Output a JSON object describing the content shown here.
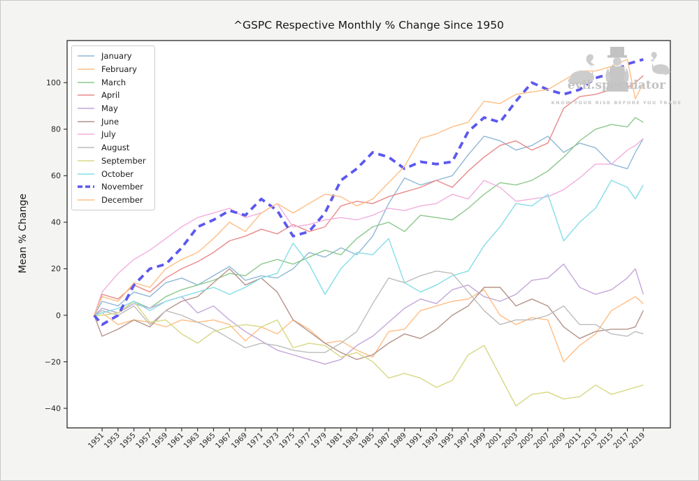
{
  "figure": {
    "background": "#f4f4f3",
    "axes_background": "#ffffff",
    "spine_color": "#2b2b2b",
    "tick_label_color": "#262626"
  },
  "watermark": {
    "brand": "evil.speculator",
    "tagline": "KNOW YOUR RISK BEFORE YOU TRADE",
    "color": "#c5c5c5"
  },
  "chart_data": {
    "type": "line",
    "title": "^GSPC Respective Monthly % Change Since 1950",
    "xlabel": "",
    "ylabel": "Mean % Change",
    "grid": false,
    "legend_position": "upper-left",
    "xlim": [
      1946.6,
      2022.4
    ],
    "ylim": [
      -48.4,
      118.1
    ],
    "y_ticks": [
      100,
      80,
      60,
      40,
      20,
      0,
      -20,
      -40
    ],
    "x_tick_labels": [
      1951,
      1953,
      1955,
      1957,
      1959,
      1961,
      1963,
      1965,
      1967,
      1969,
      1971,
      1973,
      1975,
      1977,
      1979,
      1981,
      1983,
      1985,
      1987,
      1989,
      1991,
      1993,
      1995,
      1997,
      1999,
      2001,
      2003,
      2005,
      2007,
      2009,
      2011,
      2013,
      2015,
      2017,
      2019
    ],
    "x": [
      1950,
      1951,
      1953,
      1955,
      1957,
      1959,
      1961,
      1963,
      1965,
      1967,
      1969,
      1971,
      1973,
      1975,
      1977,
      1979,
      1981,
      1983,
      1985,
      1987,
      1989,
      1991,
      1993,
      1995,
      1997,
      1999,
      2001,
      2003,
      2005,
      2007,
      2009,
      2011,
      2013,
      2015,
      2017,
      2018,
      2019
    ],
    "series": [
      {
        "name": "January",
        "color": "#8fb7d6",
        "dashed": false,
        "width": 1.4,
        "values": [
          0,
          6,
          4,
          10,
          8,
          14,
          16,
          13,
          17,
          21,
          15,
          17,
          16,
          20,
          27,
          25,
          29,
          26,
          34,
          48,
          59,
          56,
          58,
          60,
          69,
          77,
          75,
          71,
          73,
          77,
          70,
          74,
          72,
          65,
          63,
          70,
          76
        ]
      },
      {
        "name": "February",
        "color": "#ffbd83",
        "dashed": false,
        "width": 1.4,
        "values": [
          0,
          1,
          -4,
          -2,
          -3,
          -5,
          -2,
          -3,
          -2,
          -4,
          -11,
          -5,
          -8,
          -2,
          -6,
          -12,
          -11,
          -15,
          -18,
          -7,
          -6,
          2,
          4,
          6,
          7,
          11,
          0,
          -4,
          -1,
          -2,
          -20,
          -13,
          -8,
          2,
          6,
          8,
          5
        ]
      },
      {
        "name": "March",
        "color": "#8cc88c",
        "dashed": false,
        "width": 1.4,
        "values": [
          0,
          3,
          1,
          6,
          3,
          8,
          11,
          13,
          15,
          18,
          17,
          22,
          24,
          22,
          25,
          28,
          26,
          33,
          38,
          40,
          36,
          43,
          42,
          41,
          46,
          52,
          57,
          56,
          58,
          62,
          68,
          75,
          80,
          82,
          81,
          85,
          83
        ]
      },
      {
        "name": "April",
        "color": "#e98989",
        "dashed": false,
        "width": 1.4,
        "values": [
          0,
          9,
          7,
          13,
          10,
          16,
          20,
          23,
          27,
          32,
          34,
          37,
          35,
          39,
          36,
          38,
          47,
          49,
          48,
          51,
          53,
          55,
          58,
          55,
          62,
          68,
          73,
          75,
          71,
          74,
          89,
          94,
          95,
          97,
          98,
          100,
          103
        ]
      },
      {
        "name": "May",
        "color": "#c3a6d9",
        "dashed": false,
        "width": 1.4,
        "values": [
          0,
          3,
          1,
          5,
          3,
          6,
          8,
          1,
          4,
          -2,
          -7,
          -11,
          -15,
          -17,
          -19,
          -21,
          -19,
          -13,
          -9,
          -3,
          3,
          7,
          5,
          11,
          13,
          8,
          6,
          9,
          15,
          16,
          22,
          12,
          9,
          11,
          16,
          20,
          9
        ]
      },
      {
        "name": "June",
        "color": "#b5938b",
        "dashed": false,
        "width": 1.4,
        "values": [
          0,
          -9,
          -6,
          -2,
          -5,
          2,
          6,
          8,
          14,
          20,
          13,
          16,
          10,
          -2,
          -7,
          -12,
          -16,
          -19,
          -17,
          -12,
          -8,
          -10,
          -6,
          0,
          4,
          12,
          12,
          4,
          7,
          4,
          -5,
          -10,
          -7,
          -6,
          -6,
          -5,
          2
        ]
      },
      {
        "name": "July",
        "color": "#f2aede",
        "dashed": false,
        "width": 1.4,
        "values": [
          0,
          10,
          18,
          24,
          28,
          33,
          38,
          42,
          44,
          46,
          42,
          44,
          48,
          38,
          39,
          41,
          42,
          41,
          43,
          46,
          45,
          47,
          48,
          52,
          50,
          58,
          55,
          49,
          50,
          51,
          54,
          59,
          65,
          65,
          71,
          73,
          76
        ]
      },
      {
        "name": "August",
        "color": "#bcbcbc",
        "dashed": false,
        "width": 1.4,
        "values": [
          0,
          2,
          0,
          4,
          -4,
          2,
          0,
          -3,
          -6,
          -10,
          -14,
          -12,
          -13,
          -15,
          -16,
          -16,
          -12,
          -7,
          5,
          16,
          14,
          17,
          19,
          18,
          10,
          2,
          -4,
          -2,
          -2,
          0,
          4,
          -4,
          -4,
          -8,
          -9,
          -7,
          -8
        ]
      },
      {
        "name": "September",
        "color": "#d7d883",
        "dashed": false,
        "width": 1.4,
        "values": [
          0,
          0,
          1,
          6,
          -3,
          -2,
          -8,
          -12,
          -7,
          -5,
          -4,
          -5,
          -2,
          -14,
          -12,
          -13,
          -18,
          -16,
          -20,
          -27,
          -25,
          -27,
          -31,
          -28,
          -17,
          -13,
          -26,
          -39,
          -34,
          -33,
          -36,
          -35,
          -30,
          -34,
          -32,
          -31,
          -30
        ]
      },
      {
        "name": "October",
        "color": "#84dde8",
        "dashed": false,
        "width": 1.4,
        "values": [
          0,
          1,
          3,
          6,
          2,
          6,
          8,
          10,
          12,
          9,
          12,
          16,
          18,
          31,
          22,
          9,
          20,
          27,
          26,
          33,
          14,
          10,
          13,
          17,
          19,
          30,
          38,
          48,
          47,
          52,
          32,
          40,
          46,
          58,
          55,
          50,
          56
        ]
      },
      {
        "name": "November",
        "color": "#5c58ee",
        "dashed": true,
        "width": 3.8,
        "values": [
          0,
          -4,
          0,
          13,
          20,
          22,
          29,
          38,
          41,
          45,
          43,
          50,
          45,
          34,
          36,
          44,
          58,
          63,
          70,
          68,
          63,
          66,
          65,
          66,
          79,
          85,
          83,
          92,
          100,
          97,
          95,
          97,
          102,
          104,
          108,
          109,
          110
        ]
      },
      {
        "name": "December",
        "color": "#ffbd83",
        "dashed": false,
        "width": 1.4,
        "values": [
          0,
          8,
          6,
          14,
          12,
          20,
          24,
          27,
          33,
          40,
          36,
          44,
          48,
          44,
          48,
          52,
          51,
          47,
          50,
          57,
          64,
          76,
          78,
          81,
          83,
          92,
          91,
          95,
          96,
          97,
          101,
          105,
          105,
          107,
          110,
          93,
          100
        ]
      }
    ]
  }
}
